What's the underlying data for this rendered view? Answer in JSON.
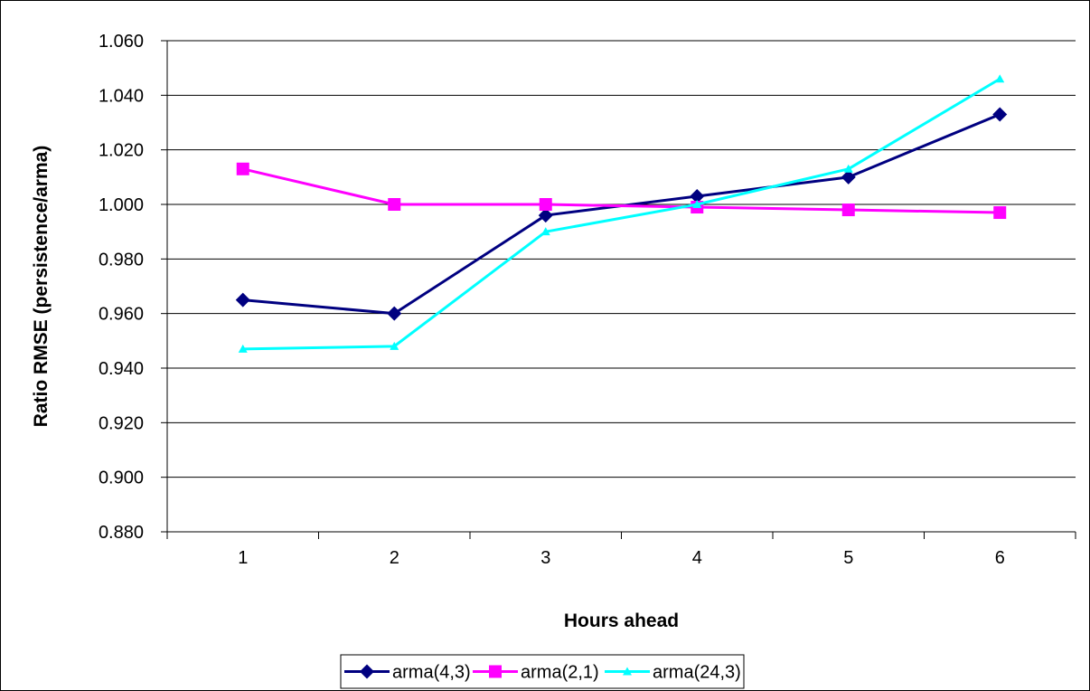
{
  "chart_data": {
    "type": "line",
    "title": "",
    "xlabel": "Hours ahead",
    "ylabel": "Ratio RMSE (persistence/arma)",
    "categories": [
      "1",
      "2",
      "3",
      "4",
      "5",
      "6"
    ],
    "ylim": [
      0.88,
      1.06
    ],
    "yticks": [
      "0.880",
      "0.900",
      "0.920",
      "0.940",
      "0.960",
      "0.980",
      "1.000",
      "1.020",
      "1.040",
      "1.060"
    ],
    "grid": "horizontal",
    "legend_position": "bottom",
    "series": [
      {
        "name": "arma(4,3)",
        "color": "#000080",
        "marker": "diamond",
        "values": [
          0.965,
          0.96,
          0.996,
          1.003,
          1.01,
          1.033
        ]
      },
      {
        "name": "arma(2,1)",
        "color": "#FF00FF",
        "marker": "square",
        "values": [
          1.013,
          1.0,
          1.0,
          0.999,
          0.998,
          0.997
        ]
      },
      {
        "name": "arma(24,3)",
        "color": "#00FFFF",
        "marker": "triangle",
        "values": [
          0.947,
          0.948,
          0.99,
          1.0,
          1.013,
          1.046
        ]
      }
    ]
  }
}
